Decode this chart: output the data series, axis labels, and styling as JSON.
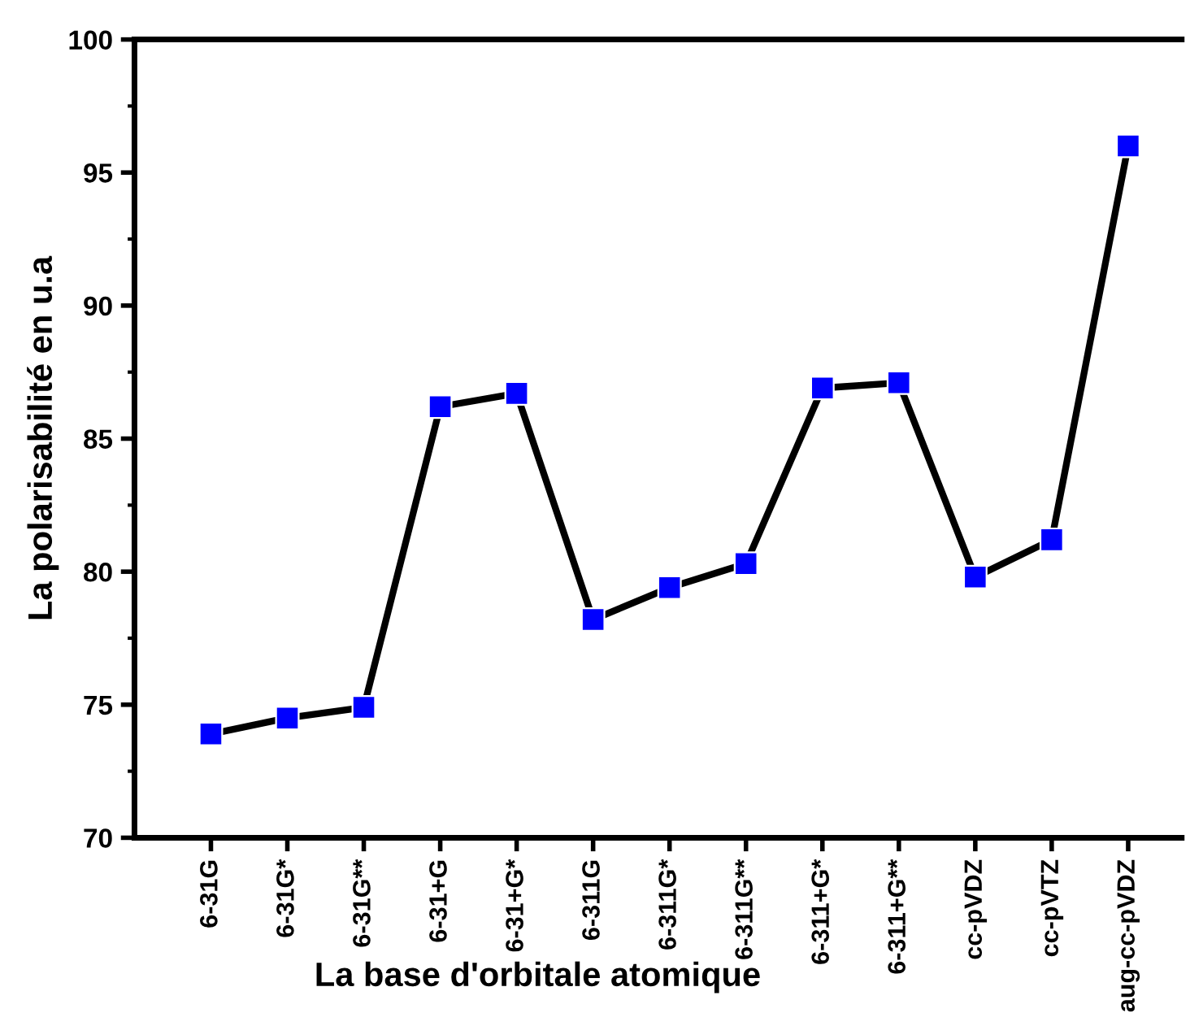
{
  "chart_data": {
    "type": "line",
    "xlabel": "La base d'orbitale atomique",
    "ylabel": "La polarisabilité en u.a",
    "categories": [
      "6-31G",
      "6-31G*",
      "6-31G**",
      "6-31+G",
      "6-31+G*",
      "6-311G",
      "6-311G*",
      "6-311G**",
      "6-311+G*",
      "6-311+G**",
      "cc-pVDZ",
      "cc-pVTZ",
      "aug-cc-pVDZ"
    ],
    "series": [
      {
        "color": "#0000ff",
        "values": [
          73.9,
          74.5,
          74.9,
          86.2,
          86.7,
          78.2,
          79.4,
          80.3,
          86.9,
          87.1,
          79.8,
          81.2,
          96.0
        ]
      }
    ],
    "ylim": [
      70,
      100
    ],
    "yticks": [
      70,
      {
        "value": 72.5,
        "label": null
      },
      75,
      {
        "value": 77.5,
        "label": null
      },
      80,
      {
        "value": 82.5,
        "label": null
      },
      85,
      {
        "value": 87.5,
        "label": null
      },
      90,
      {
        "value": 92.5,
        "label": null
      },
      95,
      {
        "value": 97.5,
        "label": null
      },
      100
    ],
    "marker": "square",
    "line_style": "solid",
    "grid": false,
    "legend": false
  }
}
